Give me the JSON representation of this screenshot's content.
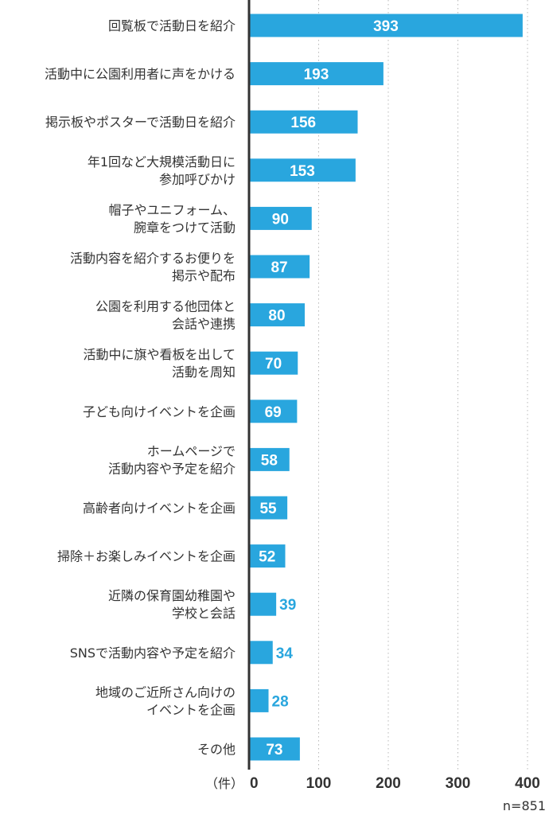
{
  "chart_data": {
    "type": "bar",
    "orientation": "horizontal",
    "categories": [
      [
        "回覧板で活動日を紹介"
      ],
      [
        "活動中に公園利用者に声をかける"
      ],
      [
        "掲示板やポスターで活動日を紹介"
      ],
      [
        "年1回など大規模活動日に",
        "参加呼びかけ"
      ],
      [
        "帽子やユニフォーム、",
        "腕章をつけて活動"
      ],
      [
        "活動内容を紹介するお便りを",
        "掲示や配布"
      ],
      [
        "公園を利用する他団体と",
        "会話や連携"
      ],
      [
        "活動中に旗や看板を出して",
        "活動を周知"
      ],
      [
        "子ども向けイベントを企画"
      ],
      [
        "ホームページで",
        "活動内容や予定を紹介"
      ],
      [
        "高齢者向けイベントを企画"
      ],
      [
        "掃除＋お楽しみイベントを企画"
      ],
      [
        "近隣の保育園幼稚園や",
        "学校と会話"
      ],
      [
        "SNSで活動内容や予定を紹介"
      ],
      [
        "地域のご近所さん向けの",
        "イベントを企画"
      ],
      [
        "その他"
      ]
    ],
    "values": [
      393,
      193,
      156,
      153,
      90,
      87,
      80,
      70,
      69,
      58,
      55,
      52,
      39,
      34,
      28,
      73
    ],
    "xlim": [
      0,
      400
    ],
    "xticks": [
      "0",
      "100",
      "200",
      "300",
      "400"
    ],
    "xunit": "（件）",
    "note": "n=851",
    "grid": "vertical dotted",
    "bar_color": "#29a6de",
    "label_outside_color": "#29a6de",
    "label_inside_color": "#ffffff",
    "axis_color": "#333333"
  }
}
